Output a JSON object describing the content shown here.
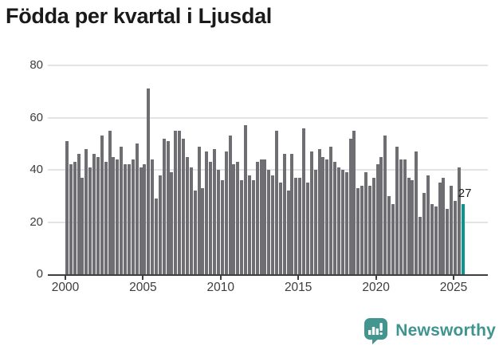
{
  "title": "Födda per kvartal i Ljusdal",
  "chart_data": {
    "type": "bar",
    "title": "Födda per kvartal i Ljusdal",
    "xlabel": "",
    "ylabel": "",
    "start_year": 2000,
    "start_quarter": 1,
    "values": [
      51,
      42,
      43,
      46,
      37,
      48,
      41,
      46,
      45,
      53,
      43,
      55,
      45,
      44,
      49,
      42,
      42,
      44,
      50,
      41,
      42,
      71,
      44,
      29,
      38,
      52,
      51,
      39,
      55,
      55,
      52,
      45,
      41,
      32,
      49,
      33,
      47,
      43,
      48,
      40,
      36,
      47,
      53,
      42,
      43,
      36,
      57,
      38,
      36,
      43,
      44,
      44,
      40,
      38,
      55,
      35,
      46,
      32,
      46,
      37,
      37,
      56,
      35,
      47,
      40,
      48,
      45,
      44,
      49,
      43,
      41,
      40,
      39,
      52,
      55,
      33,
      34,
      39,
      34,
      37,
      42,
      45,
      53,
      30,
      27,
      49,
      44,
      44,
      37,
      36,
      47,
      22,
      31,
      38,
      27,
      26,
      35,
      37,
      25,
      34,
      28,
      41,
      27
    ],
    "highlight": {
      "index": 102,
      "value": 27,
      "label": "27",
      "color": "#0a968f"
    },
    "bar_color": "#6e6e73",
    "yticks": [
      0,
      20,
      40,
      60,
      80
    ],
    "xticks": [
      2000,
      2005,
      2010,
      2015,
      2020,
      2025
    ],
    "ylim": [
      0,
      84
    ],
    "grid": "horizontal",
    "legend": "none"
  },
  "footer": {
    "brand": "Newsworthy",
    "logo_icon": "speech-bubble-bar-chart-icon",
    "brand_color": "#3e948e",
    "icon_color": "#43968f"
  }
}
